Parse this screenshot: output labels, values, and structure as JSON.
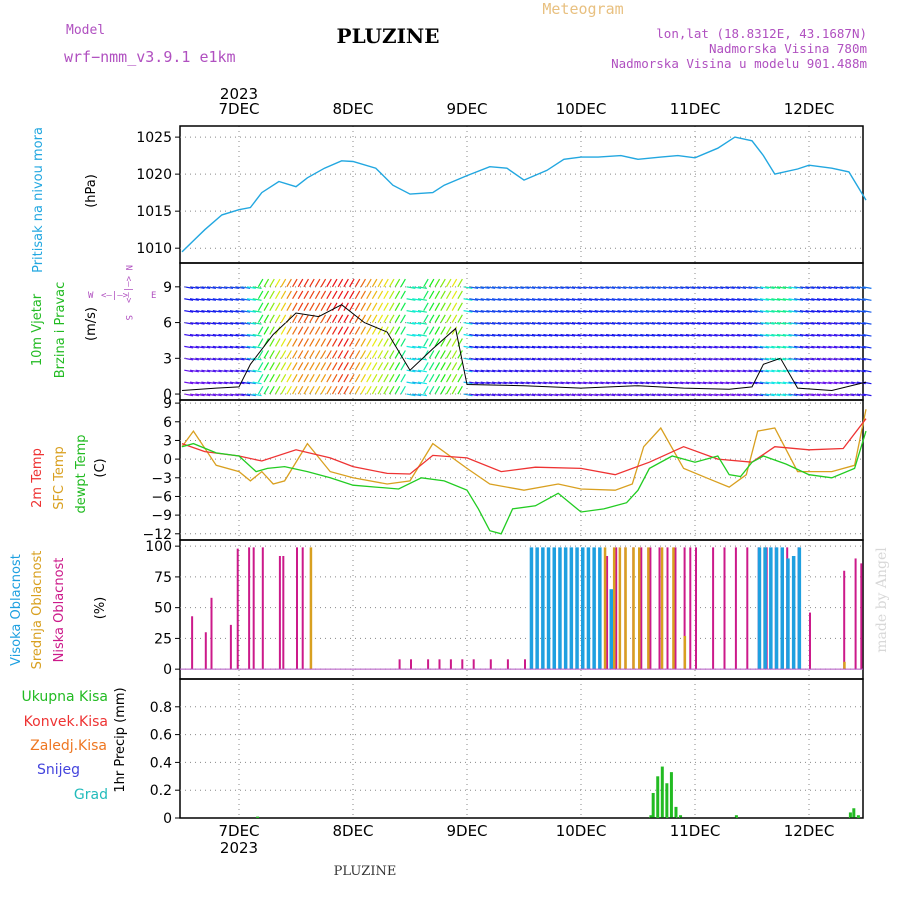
{
  "header": {
    "model_label": "Model",
    "model_value": "wrf−nmm_v3.9.1  e1km",
    "title": "PLUZINE",
    "subtitle": "Meteogram",
    "lonlat": "lon,lat (18.8312E, 43.1687N)",
    "elevation": "Nadmorska Visina 780m",
    "model_elevation": "Nadmorska Visina u modelu 901.488m",
    "year_top": "2023",
    "year_bottom": "2023",
    "footer": "PLUZINE",
    "watermark": "made by Angel"
  },
  "colors": {
    "pressure": "#22a7e0",
    "t2m": "#ee3333",
    "sfc": "#d9a020",
    "dewpt": "#22cc22",
    "high_cloud": "#1ea0e0",
    "mid_cloud": "#d8a020",
    "low_cloud": "#cc1a8a",
    "total_precip": "#22bb22",
    "conv_precip": "#ee3333",
    "grid": "#888888",
    "panel_border": "#000000"
  },
  "panels": {
    "pressure": {
      "label_colored": "Pritisak na nivou mora",
      "unit": "(hPa)",
      "ticks": [
        "1010",
        "1015",
        "1020",
        "1025"
      ]
    },
    "wind": {
      "label_line1": "10m Vjetar",
      "label_line2": "Brzina i Pravac",
      "unit": "(m/s)",
      "ticks": [
        "0",
        "3",
        "6",
        "9"
      ],
      "compass_n": "N",
      "compass_s": "S",
      "compass_e": "E",
      "compass_w": "W",
      "compass_arrows_v": "<–|–>",
      "compass_arrows_h": "<–|–>"
    },
    "temperature": {
      "label_t2m": "2m Temp",
      "label_sfc": "SFC Temp",
      "label_dewpt": "dewpt Temp",
      "unit": "(C)",
      "ticks": [
        "−12",
        "−9",
        "−6",
        "−3",
        "0",
        "3",
        "6",
        "9"
      ]
    },
    "clouds": {
      "label_high": "Visoka Oblacnost",
      "label_mid": "Srednja Oblacnost",
      "label_low": "Niska Oblacnost",
      "unit": "(%)",
      "ticks": [
        "0",
        "25",
        "50",
        "75",
        "100"
      ]
    },
    "precip": {
      "label_total": "Ukupna Kisa",
      "label_conv": "Konvek.Kisa",
      "label_frozen": "Zaledj.Kisa",
      "label_snow": "Snijeg",
      "label_hail": "Grad",
      "label_colors": [
        "#22bb22",
        "#ee3333",
        "#ee7722",
        "#4444dd",
        "#22bbbb"
      ],
      "unit": "1hr Precip (mm)",
      "ticks": [
        "0",
        "0.2",
        "0.4",
        "0.6",
        "0.8"
      ]
    }
  },
  "date_ticks": [
    "7DEC",
    "8DEC",
    "9DEC",
    "10DEC",
    "11DEC",
    "12DEC"
  ],
  "chart_data": [
    {
      "type": "line",
      "name": "pressure",
      "x_unit": "days from 6DEC 00",
      "ylim": [
        1008,
        1026.5
      ],
      "x": [
        0.5,
        0.6,
        0.7,
        0.85,
        1.0,
        1.1,
        1.2,
        1.35,
        1.5,
        1.6,
        1.75,
        1.9,
        2.0,
        2.2,
        2.35,
        2.5,
        2.7,
        2.8,
        3.0,
        3.2,
        3.35,
        3.5,
        3.7,
        3.85,
        4.0,
        4.15,
        4.35,
        4.5,
        4.7,
        4.85,
        5.0,
        5.2,
        5.35,
        5.5,
        5.6,
        5.7,
        5.9,
        6.0,
        6.2,
        6.35,
        6.5
      ],
      "y": [
        1009.5,
        1011,
        1012.5,
        1014.5,
        1015.2,
        1015.5,
        1017.5,
        1019,
        1018.3,
        1019.5,
        1020.8,
        1021.8,
        1021.7,
        1020.8,
        1018.5,
        1017.3,
        1017.5,
        1018.5,
        1019.8,
        1021,
        1020.8,
        1019.2,
        1020.5,
        1022,
        1022.3,
        1022.3,
        1022.5,
        1022.0,
        1022.3,
        1022.5,
        1022.2,
        1023.5,
        1025.0,
        1024.5,
        1022.5,
        1020.0,
        1020.7,
        1021.2,
        1020.8,
        1020.3,
        1016.5
      ]
    },
    {
      "type": "line",
      "name": "wind-speed",
      "x_unit": "days from 6DEC 00",
      "ylim": [
        -0.5,
        11
      ],
      "x": [
        0.5,
        0.8,
        1.0,
        1.1,
        1.3,
        1.5,
        1.7,
        1.9,
        2.1,
        2.3,
        2.5,
        2.7,
        2.9,
        3.0,
        3.5,
        4.0,
        4.5,
        4.9,
        5.3,
        5.5,
        5.6,
        5.75,
        5.9,
        6.2,
        6.5
      ],
      "y": [
        0.3,
        0.5,
        0.6,
        2.5,
        5.0,
        6.8,
        6.5,
        7.5,
        6.0,
        5.2,
        2.0,
        3.8,
        5.5,
        0.8,
        0.7,
        0.5,
        0.7,
        0.5,
        0.4,
        0.6,
        2.5,
        3.0,
        0.5,
        0.3,
        1.0
      ]
    },
    {
      "type": "line",
      "x_unit": "days from 6DEC 00",
      "ylim": [
        -13,
        9.5
      ],
      "series": [
        {
          "name": "2m Temp",
          "x": [
            0.5,
            0.7,
            1.0,
            1.2,
            1.5,
            1.8,
            2.0,
            2.3,
            2.5,
            2.7,
            3.0,
            3.3,
            3.6,
            4.0,
            4.3,
            4.6,
            4.9,
            5.2,
            5.5,
            5.7,
            6.0,
            6.3,
            6.5
          ],
          "y": [
            2.5,
            1.2,
            0.5,
            -0.3,
            1.5,
            0.2,
            -1.2,
            -2.3,
            -2.4,
            0.6,
            0.2,
            -2.0,
            -1.3,
            -1.5,
            -2.5,
            -0.5,
            2.0,
            0.0,
            -0.5,
            2.0,
            1.5,
            1.7,
            6.5
          ]
        },
        {
          "name": "SFC Temp",
          "x": [
            0.5,
            0.6,
            0.8,
            1.0,
            1.1,
            1.2,
            1.3,
            1.4,
            1.6,
            1.8,
            2.0,
            2.3,
            2.5,
            2.7,
            3.0,
            3.2,
            3.5,
            3.8,
            4.0,
            4.3,
            4.45,
            4.55,
            4.7,
            4.9,
            5.1,
            5.3,
            5.45,
            5.55,
            5.7,
            5.9,
            6.2,
            6.4,
            6.5
          ],
          "y": [
            2.0,
            4.5,
            -1.0,
            -2.0,
            -3.5,
            -2.0,
            -4.0,
            -3.5,
            2.5,
            -2.0,
            -3.0,
            -4.0,
            -3.5,
            2.5,
            -1.5,
            -4.0,
            -5.0,
            -4.0,
            -4.8,
            -5.0,
            -4.0,
            2.0,
            5.0,
            -1.5,
            -3.0,
            -4.5,
            -2.5,
            4.5,
            5.0,
            -2.0,
            -2.0,
            -1.0,
            8.0
          ]
        },
        {
          "name": "dewpt Temp",
          "x": [
            0.5,
            0.6,
            0.8,
            1.0,
            1.15,
            1.25,
            1.4,
            1.6,
            1.8,
            2.0,
            2.2,
            2.4,
            2.6,
            2.8,
            3.0,
            3.1,
            3.2,
            3.3,
            3.4,
            3.6,
            3.8,
            4.0,
            4.2,
            4.4,
            4.5,
            4.6,
            4.8,
            5.0,
            5.2,
            5.3,
            5.4,
            5.5,
            5.6,
            5.8,
            6.0,
            6.2,
            6.4,
            6.5
          ],
          "y": [
            2.0,
            2.5,
            1.0,
            0.5,
            -2.0,
            -1.5,
            -1.2,
            -2.0,
            -3.0,
            -4.2,
            -4.5,
            -4.8,
            -3.0,
            -3.5,
            -5.0,
            -8.0,
            -11.5,
            -12.0,
            -8.0,
            -7.5,
            -5.5,
            -8.5,
            -8.0,
            -7.0,
            -5.0,
            -1.5,
            0.5,
            -0.5,
            0.5,
            -2.5,
            -2.8,
            -0.5,
            0.5,
            -0.8,
            -2.5,
            -3.0,
            -1.5,
            4.5
          ]
        }
      ]
    },
    {
      "type": "bar",
      "name": "cloud-cover",
      "x_unit": "days from 6DEC 00",
      "ylim": [
        0,
        100
      ],
      "series": [
        {
          "name": "Niska Oblacnost",
          "x": [
            0.58,
            0.7,
            0.75,
            0.92,
            0.98,
            1.08,
            1.12,
            1.2,
            1.35,
            1.38,
            1.5,
            1.55,
            2.4,
            2.5,
            2.65,
            2.75,
            2.85,
            2.95,
            3.05,
            3.2,
            3.35,
            3.5,
            4.22,
            4.3,
            4.38,
            4.45,
            4.52,
            4.6,
            4.68,
            4.75,
            4.82,
            4.9,
            4.95,
            5.0,
            5.15,
            5.25,
            5.35,
            5.45,
            5.55,
            5.62,
            5.7,
            5.8,
            5.9,
            6.0,
            6.3,
            6.4,
            6.45
          ],
          "y": [
            43,
            30,
            58,
            36,
            98,
            99,
            99,
            99,
            92,
            92,
            99,
            99,
            8,
            8,
            8,
            8,
            8,
            8,
            8,
            8,
            8,
            8,
            92,
            99,
            99,
            99,
            99,
            99,
            99,
            99,
            99,
            99,
            99,
            99,
            99,
            99,
            99,
            99,
            99,
            99,
            99,
            99,
            99,
            46,
            80,
            90,
            86
          ]
        },
        {
          "name": "Srednja Oblacnost",
          "x": [
            1.62,
            4.2,
            4.28,
            4.33,
            4.38,
            4.45,
            4.5,
            4.58,
            4.7,
            4.8,
            4.9,
            5.6,
            6.3
          ],
          "y": [
            99,
            99,
            99,
            99,
            99,
            99,
            99,
            99,
            99,
            99,
            27,
            99,
            6
          ]
        },
        {
          "name": "Visoka Oblacnost",
          "x": [
            3.55,
            3.6,
            3.65,
            3.7,
            3.75,
            3.8,
            3.85,
            3.9,
            3.95,
            4.0,
            4.05,
            4.1,
            4.15,
            4.25,
            5.55,
            5.6,
            5.65,
            5.7,
            5.75,
            5.8,
            5.85,
            5.9
          ],
          "y": [
            99,
            99,
            99,
            99,
            99,
            99,
            99,
            99,
            99,
            99,
            99,
            99,
            99,
            65,
            99,
            99,
            99,
            99,
            99,
            90,
            92,
            99
          ]
        }
      ]
    },
    {
      "type": "bar",
      "name": "precipitation",
      "x_unit": "days from 6DEC 00",
      "ylim": [
        0,
        1.0
      ],
      "series": [
        {
          "name": "Ukupna Kisa",
          "x": [
            1.15,
            4.6,
            4.62,
            4.66,
            4.7,
            4.74,
            4.78,
            4.82,
            4.86,
            5.35,
            6.35,
            6.38,
            6.42
          ],
          "y": [
            0.01,
            0.02,
            0.18,
            0.3,
            0.37,
            0.25,
            0.33,
            0.08,
            0.02,
            0.02,
            0.04,
            0.07,
            0.02
          ]
        }
      ]
    }
  ]
}
